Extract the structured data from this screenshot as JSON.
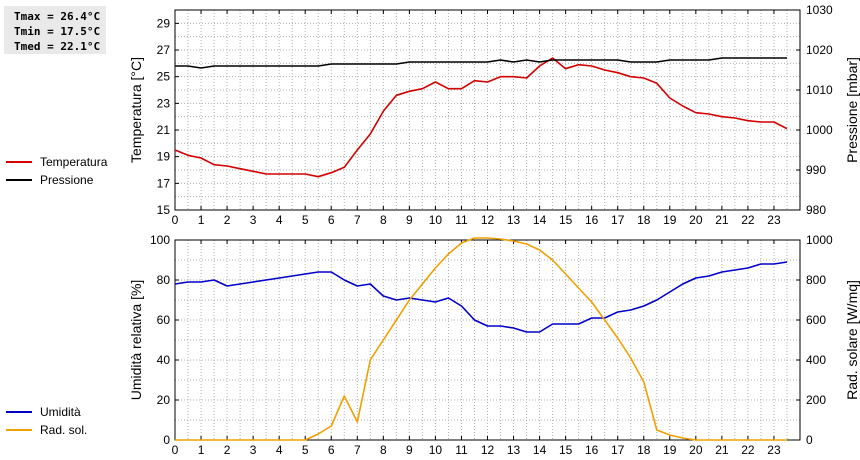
{
  "stats": {
    "tmax": "Tmax = 26.4°C",
    "tmin": "Tmin = 17.5°C",
    "tmed": "Tmed = 22.1°C"
  },
  "legend_top": [
    {
      "label": "Temperatura",
      "color": "#d40000"
    },
    {
      "label": "Pressione",
      "color": "#000000"
    }
  ],
  "legend_bottom": [
    {
      "label": "Umidità",
      "color": "#0000c8"
    },
    {
      "label": "Rad. sol.",
      "color": "#f0a000"
    }
  ],
  "chart_data": [
    {
      "type": "line",
      "x_ticks": [
        "0",
        "1",
        "2",
        "3",
        "4",
        "5",
        "6",
        "7",
        "8",
        "9",
        "10",
        "11",
        "12",
        "13",
        "14",
        "15",
        "16",
        "17",
        "18",
        "19",
        "20",
        "21",
        "22",
        "23"
      ],
      "xlim": [
        0,
        24
      ],
      "ylabel_left": "Temperatura [°C]",
      "ylim_left": [
        15,
        30
      ],
      "yticks_left": [
        "15",
        "17",
        "19",
        "21",
        "23",
        "25",
        "27",
        "29"
      ],
      "ylabel_right": "Pressione [mbar]",
      "ylim_right": [
        980,
        1030
      ],
      "yticks_right": [
        "980",
        "990",
        "1000",
        "1010",
        "1020",
        "1030"
      ],
      "grid": true,
      "series": [
        {
          "name": "Temperatura",
          "axis": "left",
          "color": "#d40000",
          "x": [
            0,
            0.5,
            1,
            1.5,
            2,
            2.5,
            3,
            3.5,
            4,
            4.5,
            5,
            5.5,
            6,
            6.5,
            7,
            7.5,
            8,
            8.5,
            9,
            9.5,
            10,
            10.5,
            11,
            11.5,
            12,
            12.5,
            13,
            13.5,
            14,
            14.5,
            15,
            15.5,
            16,
            16.5,
            17,
            17.5,
            18,
            18.5,
            19,
            19.5,
            20,
            20.5,
            21,
            21.5,
            22,
            22.5,
            23,
            23.5
          ],
          "y": [
            19.5,
            19.1,
            18.9,
            18.4,
            18.3,
            18.1,
            17.9,
            17.7,
            17.7,
            17.7,
            17.7,
            17.5,
            17.8,
            18.2,
            19.5,
            20.7,
            22.4,
            23.6,
            23.9,
            24.1,
            24.6,
            24.1,
            24.1,
            24.7,
            24.6,
            25.0,
            25.0,
            24.9,
            25.8,
            26.4,
            25.6,
            25.9,
            25.8,
            25.5,
            25.3,
            25.0,
            24.9,
            24.5,
            23.4,
            22.8,
            22.3,
            22.2,
            22.0,
            21.9,
            21.7,
            21.6,
            21.6,
            21.1
          ]
        },
        {
          "name": "Pressione",
          "axis": "right",
          "color": "#000000",
          "x": [
            0,
            0.5,
            1,
            1.5,
            2,
            2.5,
            3,
            3.5,
            4,
            4.5,
            5,
            5.5,
            6,
            6.5,
            7,
            7.5,
            8,
            8.5,
            9,
            9.5,
            10,
            10.5,
            11,
            11.5,
            12,
            12.5,
            13,
            13.5,
            14,
            14.5,
            15,
            15.5,
            16,
            16.5,
            17,
            17.5,
            18,
            18.5,
            19,
            19.5,
            20,
            20.5,
            21,
            21.5,
            22,
            22.5,
            23,
            23.5
          ],
          "y": [
            1016,
            1016,
            1015.5,
            1016,
            1016,
            1016,
            1016,
            1016,
            1016,
            1016,
            1016,
            1016,
            1016.5,
            1016.5,
            1016.5,
            1016.5,
            1016.5,
            1016.5,
            1017,
            1017,
            1017,
            1017,
            1017,
            1017,
            1017,
            1017.5,
            1017,
            1017.5,
            1017,
            1017.5,
            1017.5,
            1017.5,
            1017.5,
            1017.5,
            1017.5,
            1017,
            1017,
            1017,
            1017.5,
            1017.5,
            1017.5,
            1017.5,
            1018,
            1018,
            1018,
            1018,
            1018,
            1018
          ]
        }
      ]
    },
    {
      "type": "line",
      "x_ticks": [
        "0",
        "1",
        "2",
        "3",
        "4",
        "5",
        "6",
        "7",
        "8",
        "9",
        "10",
        "11",
        "12",
        "13",
        "14",
        "15",
        "16",
        "17",
        "18",
        "19",
        "20",
        "21",
        "22",
        "23"
      ],
      "xlim": [
        0,
        24
      ],
      "ylabel_left": "Umidità relativa [%]",
      "ylim_left": [
        0,
        100
      ],
      "yticks_left": [
        "0",
        "20",
        "40",
        "60",
        "80",
        "100"
      ],
      "ylabel_right": "Rad. solare [W/mq]",
      "ylim_right": [
        0,
        1000
      ],
      "yticks_right": [
        "0",
        "200",
        "400",
        "600",
        "800",
        "1000"
      ],
      "grid": true,
      "series": [
        {
          "name": "Umidità",
          "axis": "left",
          "color": "#0000c8",
          "x": [
            0,
            0.5,
            1,
            1.5,
            2,
            2.5,
            3,
            3.5,
            4,
            4.5,
            5,
            5.5,
            6,
            6.5,
            7,
            7.5,
            8,
            8.5,
            9,
            9.5,
            10,
            10.5,
            11,
            11.5,
            12,
            12.5,
            13,
            13.5,
            14,
            14.5,
            15,
            15.5,
            16,
            16.5,
            17,
            17.5,
            18,
            18.5,
            19,
            19.5,
            20,
            20.5,
            21,
            21.5,
            22,
            22.5,
            23,
            23.5
          ],
          "y": [
            78,
            79,
            79,
            80,
            77,
            78,
            79,
            80,
            81,
            82,
            83,
            84,
            84,
            80,
            77,
            78,
            72,
            70,
            71,
            70,
            69,
            71,
            67,
            60,
            57,
            57,
            56,
            54,
            54,
            58,
            58,
            58,
            61,
            61,
            64,
            65,
            67,
            70,
            74,
            78,
            81,
            82,
            84,
            85,
            86,
            88,
            88,
            89
          ]
        },
        {
          "name": "Rad. sol.",
          "axis": "right",
          "color": "#f0a000",
          "x": [
            0,
            0.5,
            1,
            1.5,
            2,
            2.5,
            3,
            3.5,
            4,
            4.5,
            5,
            5.5,
            6,
            6.5,
            7,
            7.5,
            8,
            8.5,
            9,
            9.5,
            10,
            10.5,
            11,
            11.5,
            12,
            12.5,
            13,
            13.5,
            14,
            14.5,
            15,
            15.5,
            16,
            16.5,
            17,
            17.5,
            18,
            18.5,
            19,
            19.5,
            20,
            20.5,
            21,
            21.5,
            22,
            22.5,
            23,
            23.5
          ],
          "y": [
            0,
            0,
            0,
            0,
            0,
            0,
            0,
            0,
            0,
            0,
            0,
            30,
            70,
            220,
            90,
            400,
            500,
            600,
            700,
            780,
            860,
            930,
            985,
            1010,
            1010,
            1005,
            995,
            980,
            950,
            900,
            830,
            760,
            690,
            600,
            510,
            410,
            290,
            50,
            25,
            10,
            0,
            0,
            0,
            0,
            0,
            0,
            0,
            0
          ]
        }
      ]
    }
  ]
}
